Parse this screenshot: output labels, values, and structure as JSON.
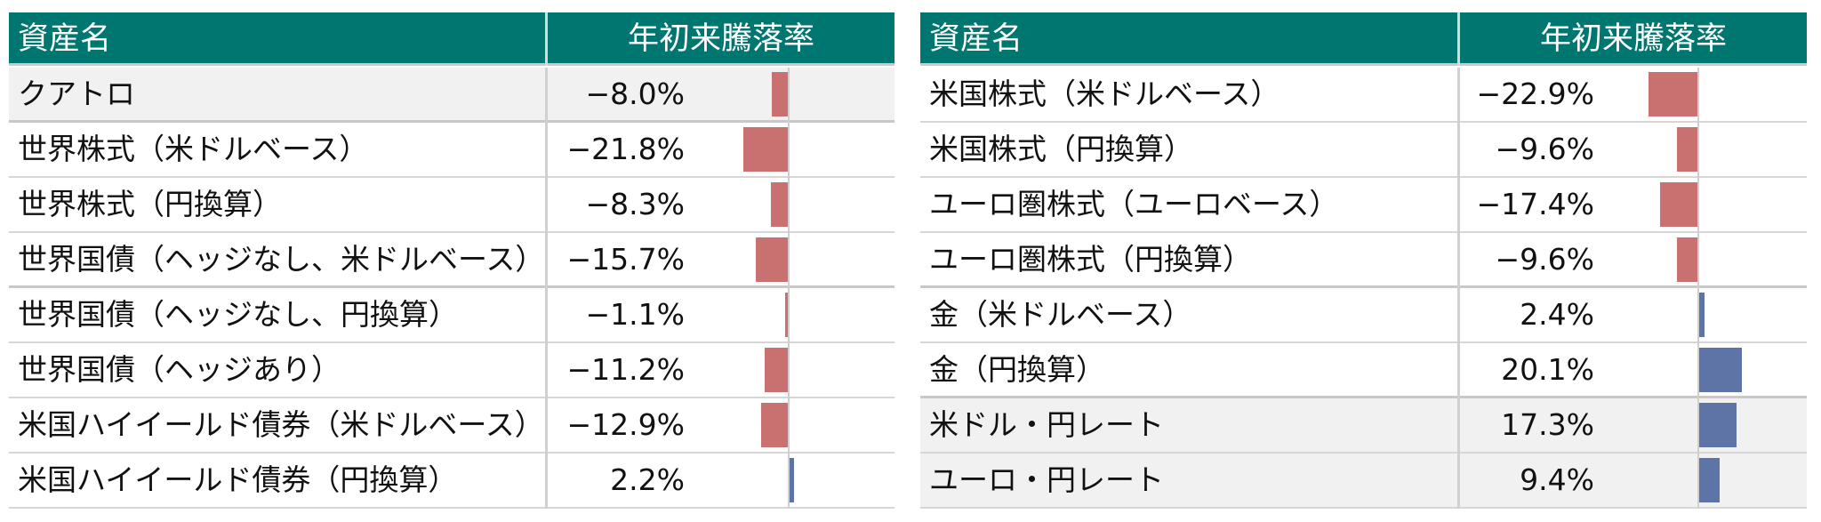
{
  "colors": {
    "header_bg": "#007670",
    "negative_bar": "#c97070",
    "positive_bar": "#5e74a6",
    "shade": "#f1f1f1"
  },
  "chart_data": [
    {
      "type": "table",
      "headers": [
        "資産名",
        "年初来騰落率"
      ],
      "rows": [
        {
          "name": "クアトロ",
          "value_text": "−8.0%",
          "value": -8.0
        },
        {
          "name": "世界株式（米ドルベース）",
          "value_text": "−21.8%",
          "value": -21.8
        },
        {
          "name": "世界株式（円換算）",
          "value_text": "−8.3%",
          "value": -8.3
        },
        {
          "name": "世界国債（ヘッジなし、米ドルベース）",
          "value_text": "−15.7%",
          "value": -15.7
        },
        {
          "name": "世界国債（ヘッジなし、円換算）",
          "value_text": "−1.1%",
          "value": -1.1
        },
        {
          "name": "世界国債（ヘッジあり）",
          "value_text": "−11.2%",
          "value": -11.2
        },
        {
          "name": "米国ハイイールド債券（米ドルベース）",
          "value_text": "−12.9%",
          "value": -12.9
        },
        {
          "name": "米国ハイイールド債券（円換算）",
          "value_text": "2.2%",
          "value": 2.2
        }
      ]
    },
    {
      "type": "table",
      "headers": [
        "資産名",
        "年初来騰落率"
      ],
      "rows": [
        {
          "name": "米国株式（米ドルベース）",
          "value_text": "−22.9%",
          "value": -22.9
        },
        {
          "name": "米国株式（円換算）",
          "value_text": "−9.6%",
          "value": -9.6
        },
        {
          "name": "ユーロ圏株式（ユーロベース）",
          "value_text": "−17.4%",
          "value": -17.4
        },
        {
          "name": "ユーロ圏株式（円換算）",
          "value_text": "−9.6%",
          "value": -9.6
        },
        {
          "name": "金（米ドルベース）",
          "value_text": "2.4%",
          "value": 2.4
        },
        {
          "name": "金（円換算）",
          "value_text": "20.1%",
          "value": 20.1
        },
        {
          "name": "米ドル・円レート",
          "value_text": "17.3%",
          "value": 17.3
        },
        {
          "name": "ユーロ・円レート",
          "value_text": "9.4%",
          "value": 9.4
        }
      ]
    }
  ]
}
